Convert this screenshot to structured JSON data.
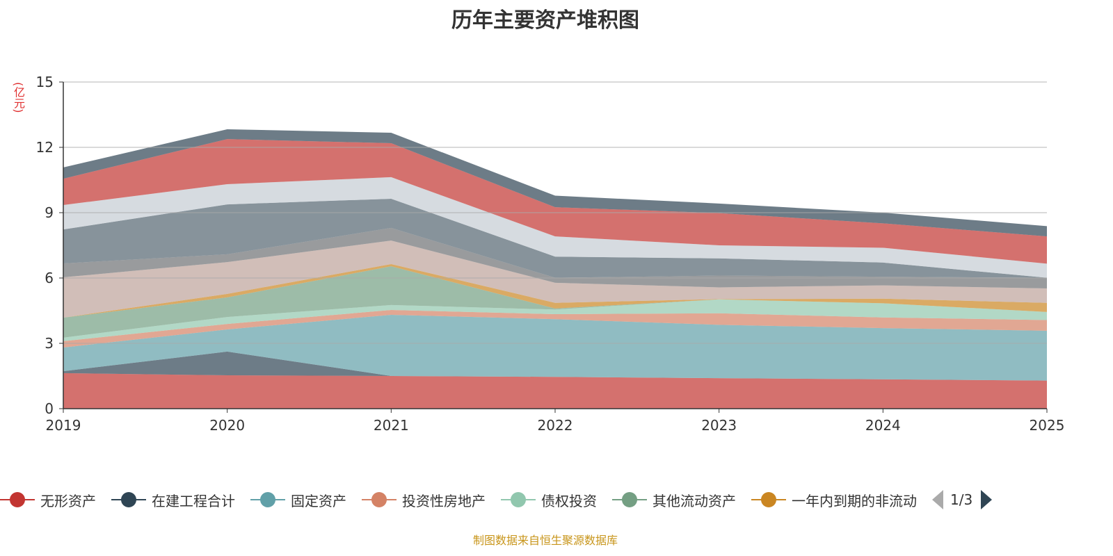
{
  "chart_data": {
    "type": "area",
    "stacked": true,
    "title": "历年主要资产堆积图",
    "ylabel": "(亿元)",
    "xlabel": "",
    "categories": [
      "2019",
      "2020",
      "2021",
      "2022",
      "2023",
      "2024",
      "2025"
    ],
    "ylim": [
      0,
      15
    ],
    "yticks": [
      0,
      3,
      6,
      9,
      12,
      15
    ],
    "grid": true,
    "legend_position": "bottom",
    "legend_page": "1/3",
    "series": [
      {
        "name": "无形资产",
        "color": "#c23531",
        "values": [
          1.63,
          1.53,
          1.5,
          1.46,
          1.4,
          1.35,
          1.29
        ]
      },
      {
        "name": "在建工程合计",
        "color": "#2f4554",
        "values": [
          0.09,
          1.09,
          0.0,
          0.0,
          0.0,
          0.0,
          0.0
        ]
      },
      {
        "name": "固定资产",
        "color": "#61a0a8",
        "values": [
          1.09,
          1.02,
          2.81,
          2.65,
          2.45,
          2.35,
          2.29
        ]
      },
      {
        "name": "投资性房地产",
        "color": "#d48265",
        "values": [
          0.29,
          0.25,
          0.22,
          0.23,
          0.53,
          0.49,
          0.49
        ]
      },
      {
        "name": "债权投资",
        "color": "#91c7ae",
        "values": [
          0.16,
          0.32,
          0.23,
          0.21,
          0.64,
          0.65,
          0.37
        ]
      },
      {
        "name": "其他流动资产",
        "color": "#749f83",
        "values": [
          0.92,
          0.9,
          1.78,
          0.05,
          0.0,
          0.0,
          0.0
        ]
      },
      {
        "name": "一年内到期的非流动",
        "color": "#ca8622",
        "values": [
          0.0,
          0.16,
          0.1,
          0.26,
          0.01,
          0.21,
          0.42
        ]
      },
      {
        "color": "#bda29a",
        "values": [
          1.85,
          1.46,
          1.08,
          0.92,
          0.54,
          0.61,
          0.66
        ]
      },
      {
        "color": "#6e7074",
        "values": [
          0.64,
          0.36,
          0.58,
          0.23,
          0.54,
          0.4,
          0.49
        ]
      },
      {
        "color": "#546570",
        "values": [
          1.56,
          2.29,
          1.34,
          0.97,
          0.79,
          0.65,
          0.0
        ]
      },
      {
        "color": "#c4ccd3",
        "values": [
          1.12,
          0.93,
          0.99,
          0.93,
          0.6,
          0.68,
          0.65
        ]
      },
      {
        "color": "#c23531",
        "values": [
          1.21,
          2.07,
          1.56,
          1.34,
          1.48,
          1.12,
          1.25
        ]
      },
      {
        "color": "#2f4554",
        "values": [
          0.52,
          0.45,
          0.48,
          0.53,
          0.44,
          0.49,
          0.47
        ]
      }
    ]
  },
  "source": "制图数据来自恒生聚源数据库"
}
